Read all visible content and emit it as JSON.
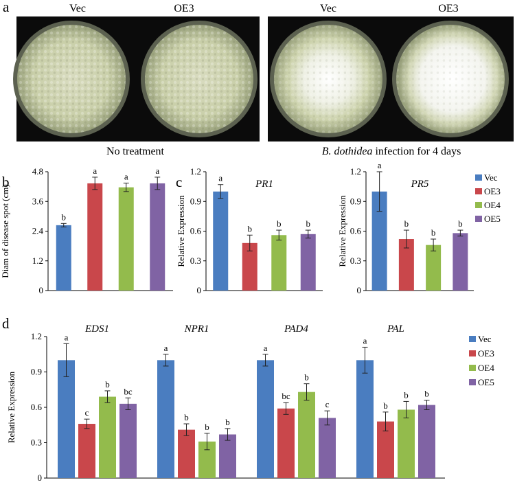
{
  "panel_a": {
    "letter": "a",
    "plate_labels": [
      "Vec",
      "OE3",
      "Vec",
      "OE3"
    ],
    "captions": [
      "No treatment",
      "B. dothidea",
      "infection for 4 days"
    ]
  },
  "colors": {
    "Vec": "#4a7dc0",
    "OE3": "#c9474b",
    "OE4": "#93bb4c",
    "OE5": "#8063a4"
  },
  "chart_data": [
    {
      "id": "b",
      "letter": "b",
      "type": "bar",
      "categories": [
        "Vec",
        "OE3",
        "OE4",
        "OE5"
      ],
      "values": [
        2.64,
        4.33,
        4.17,
        4.33
      ],
      "errors": [
        0.07,
        0.25,
        0.17,
        0.25
      ],
      "sig": [
        "b",
        "a",
        "a",
        "a"
      ],
      "ylabel": "Diam of disease spot (cm)",
      "ylim": [
        0,
        4.8
      ],
      "yticks": [
        "0",
        "1.2",
        "2.4",
        "3.6",
        "4.8"
      ]
    },
    {
      "id": "c1",
      "letter": "c",
      "type": "bar",
      "title": "PR1",
      "categories": [
        "Vec",
        "OE3",
        "OE4",
        "OE5"
      ],
      "values": [
        1.0,
        0.48,
        0.56,
        0.57
      ],
      "errors": [
        0.07,
        0.08,
        0.05,
        0.04
      ],
      "sig": [
        "a",
        "b",
        "b",
        "b"
      ],
      "ylabel": "Relative Expression",
      "ylim": [
        0,
        1.2
      ],
      "yticks": [
        "0",
        "0.3",
        "0.6",
        "0.9",
        "1.2"
      ]
    },
    {
      "id": "c2",
      "type": "bar",
      "title": "PR5",
      "categories": [
        "Vec",
        "OE3",
        "OE4",
        "OE5"
      ],
      "values": [
        1.0,
        0.52,
        0.46,
        0.58
      ],
      "errors": [
        0.2,
        0.09,
        0.06,
        0.03
      ],
      "sig": [
        "a",
        "b",
        "b",
        "b"
      ],
      "ylabel": "Relative Expression",
      "ylim": [
        0,
        1.2
      ],
      "yticks": [
        "0",
        "0.3",
        "0.6",
        "0.9",
        "1.2"
      ],
      "legend": [
        "Vec",
        "OE3",
        "OE4",
        "OE5"
      ]
    },
    {
      "id": "d",
      "letter": "d",
      "type": "bar",
      "categories": [
        "EDS1",
        "NPR1",
        "PAD4",
        "PAL"
      ],
      "series": [
        {
          "name": "Vec",
          "values": [
            1.0,
            1.0,
            1.0,
            1.0
          ],
          "errors": [
            0.14,
            0.05,
            0.05,
            0.11
          ],
          "sig": [
            "a",
            "a",
            "a",
            "a"
          ]
        },
        {
          "name": "OE3",
          "values": [
            0.46,
            0.41,
            0.59,
            0.48
          ],
          "errors": [
            0.04,
            0.05,
            0.05,
            0.08
          ],
          "sig": [
            "c",
            "b",
            "bc",
            "b"
          ]
        },
        {
          "name": "OE4",
          "values": [
            0.69,
            0.31,
            0.73,
            0.58
          ],
          "errors": [
            0.05,
            0.07,
            0.07,
            0.07
          ],
          "sig": [
            "b",
            "b",
            "b",
            "b"
          ]
        },
        {
          "name": "OE5",
          "values": [
            0.63,
            0.37,
            0.51,
            0.62
          ],
          "errors": [
            0.05,
            0.05,
            0.06,
            0.04
          ],
          "sig": [
            "bc",
            "b",
            "c",
            "b"
          ]
        }
      ],
      "ylabel": "Relative Expression",
      "ylim": [
        0,
        1.2
      ],
      "yticks": [
        "0",
        "0.3",
        "0.6",
        "0.9",
        "1.2"
      ],
      "legend": [
        "Vec",
        "OE3",
        "OE4",
        "OE5"
      ]
    }
  ]
}
